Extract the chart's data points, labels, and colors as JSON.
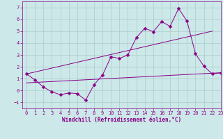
{
  "bg_color": "#cce8e8",
  "grid_color": "#aacccc",
  "line_color": "#880088",
  "xlabel": "Windchill (Refroidissement éolien,°C)",
  "xlim": [
    -0.5,
    23
  ],
  "ylim": [
    -1.5,
    7.5
  ],
  "xticks": [
    0,
    1,
    2,
    3,
    4,
    5,
    6,
    7,
    8,
    9,
    10,
    11,
    12,
    13,
    14,
    15,
    16,
    17,
    18,
    19,
    20,
    21,
    22,
    23
  ],
  "yticks": [
    -1,
    0,
    1,
    2,
    3,
    4,
    5,
    6,
    7
  ],
  "line1_x": [
    0,
    1,
    2,
    3,
    4,
    5,
    6,
    7,
    8,
    9,
    10,
    11,
    12,
    13,
    14,
    15,
    16,
    17,
    18,
    19,
    20,
    21,
    22,
    23
  ],
  "line1_y": [
    1.4,
    0.9,
    0.3,
    -0.1,
    -0.35,
    -0.2,
    -0.25,
    -0.8,
    0.5,
    1.3,
    2.85,
    2.7,
    3.0,
    4.45,
    5.25,
    4.95,
    5.8,
    5.4,
    6.9,
    5.85,
    3.1,
    2.05,
    1.4,
    1.5
  ],
  "line2_x": [
    0,
    22
  ],
  "line2_y": [
    1.4,
    5.0
  ],
  "line3_x": [
    0,
    23
  ],
  "line3_y": [
    0.65,
    1.5
  ],
  "tick_fontsize": 5,
  "xlabel_fontsize": 5.5
}
